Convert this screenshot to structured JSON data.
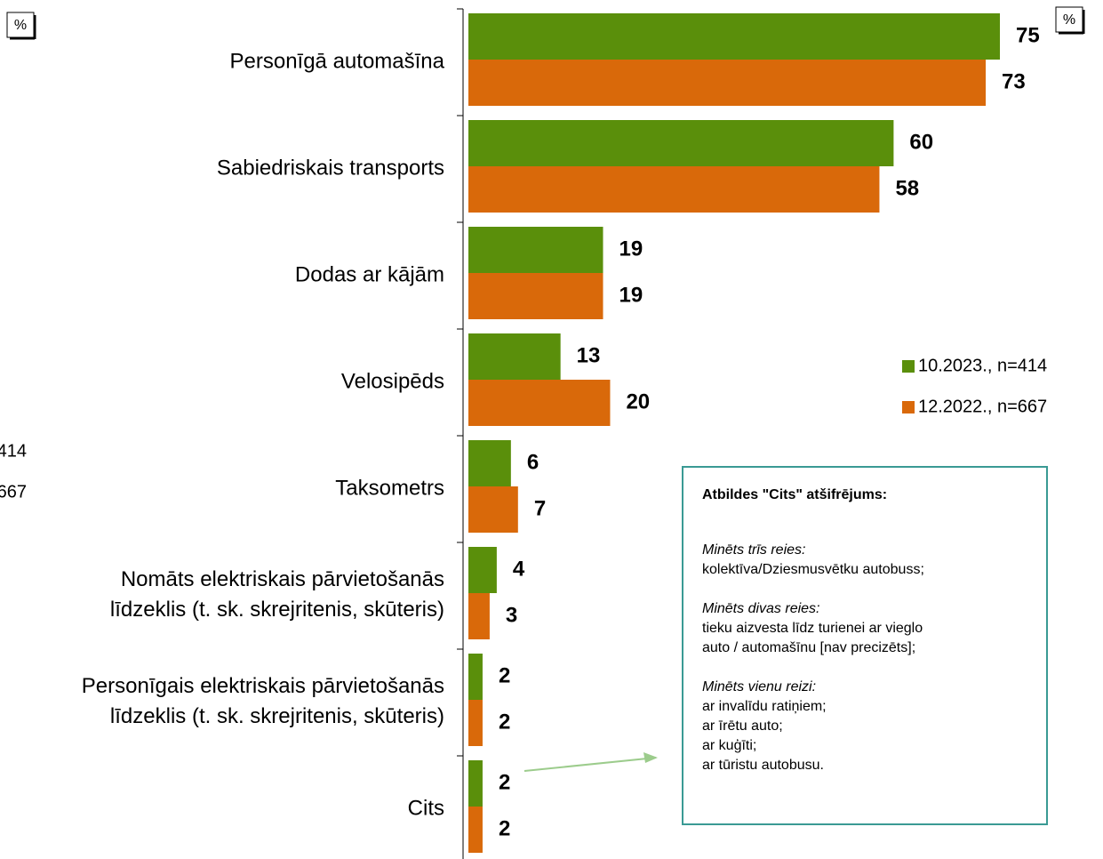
{
  "chart_data": {
    "type": "bar",
    "orientation": "horizontal",
    "unit_badges": [
      "%",
      "%"
    ],
    "categories": [
      "Personīgā automašīna",
      "Sabiedriskais transports",
      "Dodas ar kājām",
      "Velosipēds",
      "Taksometrs",
      "Nomāts elektriskais pārvietošanās\nlīdzeklis (t. sk. skrejritenis, skūteris)",
      "Personīgais elektriskais pārvietošanās\nlīdzeklis (t. sk. skrejritenis, skūteris)",
      "Cits"
    ],
    "series": [
      {
        "name": "10.2023., n=414",
        "color": "#5a8f0b",
        "values": [
          75,
          60,
          19,
          13,
          6,
          4,
          2,
          2
        ]
      },
      {
        "name": "12.2022., n=667",
        "color": "#d9690a",
        "values": [
          73,
          58,
          19,
          20,
          7,
          3,
          2,
          2
        ]
      }
    ],
    "xlim": [
      0,
      75
    ],
    "legend": "right",
    "annotation": {
      "title": "Atbildes \"Cits\" atšifrējums:",
      "blocks": [
        {
          "heading": "Minēts trīs reies:",
          "lines": [
            "kolektīva/Dziesmusvētku autobuss;"
          ]
        },
        {
          "heading": "Minēts divas reies:",
          "lines": [
            "tieku aizvesta līdz turienei ar vieglo",
            "auto / automašīnu [nav precizēts];"
          ]
        },
        {
          "heading": "Minēts vienu reizi:",
          "lines": [
            "ar invalīdu ratiņiem;",
            "ar īrētu auto;",
            "ar kuģīti;",
            "ar tūristu autobusu."
          ]
        }
      ]
    }
  }
}
